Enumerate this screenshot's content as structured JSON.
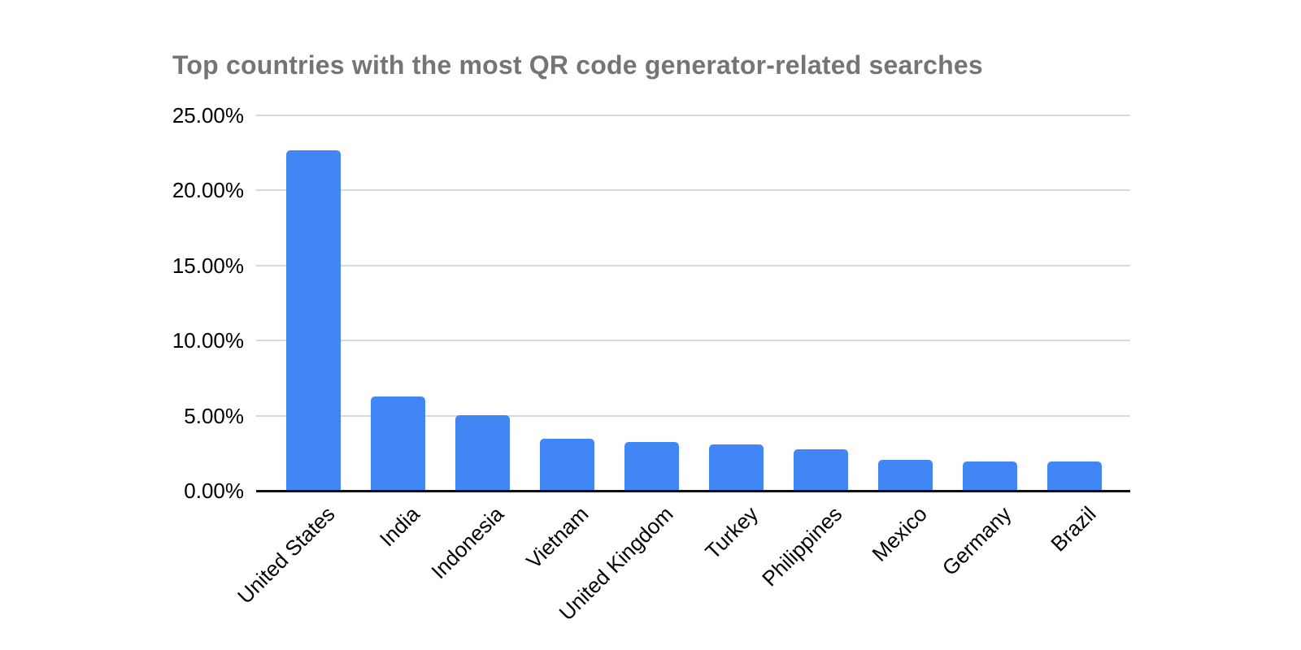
{
  "page": {
    "background_color": "#FFFFFF"
  },
  "colors": {
    "bar": "#4285F4",
    "title_text": "#757575",
    "gridline": "#D9D9D9",
    "axis_line": "#111111",
    "tick_text": "#000000"
  },
  "chart_data": {
    "type": "bar",
    "title": "Top countries with the most QR code generator-related searches",
    "categories": [
      "United States",
      "India",
      "Indonesia",
      "Vietnam",
      "United Kingdom",
      "Turkey",
      "Philippines",
      "Mexico",
      "Germany",
      "Brazil"
    ],
    "values": [
      22.69,
      6.29,
      5.05,
      3.45,
      3.24,
      3.06,
      2.77,
      2.08,
      1.96,
      1.95
    ],
    "value_unit": "%",
    "xlabel": "",
    "ylabel": "",
    "ylim": [
      0,
      25
    ],
    "yticks": [
      {
        "value": 0,
        "label": "0.00%"
      },
      {
        "value": 5,
        "label": "5.00%"
      },
      {
        "value": 10,
        "label": "10.00%"
      },
      {
        "value": 15,
        "label": "15.00%"
      },
      {
        "value": 20,
        "label": "20.00%"
      },
      {
        "value": 25,
        "label": "25.00%"
      }
    ],
    "grid": "horizontal",
    "legend": "none",
    "x_label_rotation_deg": 45
  }
}
